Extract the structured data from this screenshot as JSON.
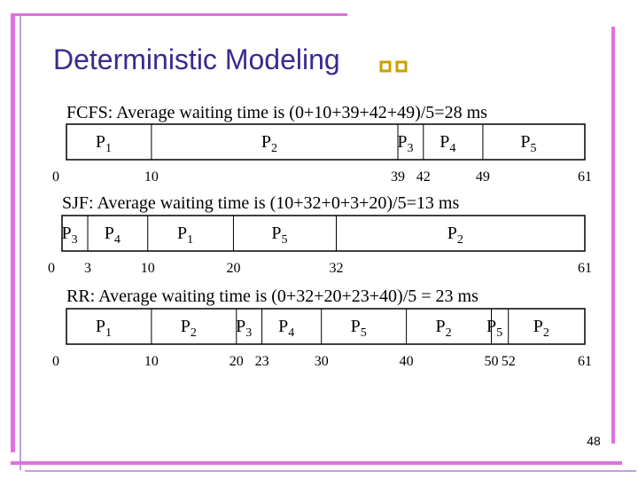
{
  "title": "Deterministic Modeling",
  "gantt": [
    {
      "heading": "FCFS: Average waiting time is (0+10+39+42+49)/5=28 ms",
      "segments": [
        {
          "letter": "P",
          "sub": "1"
        },
        {
          "letter": "P",
          "sub": "2"
        },
        {
          "letter": "P",
          "sub": "3"
        },
        {
          "letter": "P",
          "sub": "4"
        },
        {
          "letter": "P",
          "sub": "5"
        }
      ],
      "ticks": [
        0,
        10,
        39,
        42,
        49,
        61
      ]
    },
    {
      "heading": "SJF: Average waiting time is (10+32+0+3+20)/5=13 ms",
      "segments": [
        {
          "letter": "P",
          "sub": "3"
        },
        {
          "letter": "P",
          "sub": "4"
        },
        {
          "letter": "P",
          "sub": "1"
        },
        {
          "letter": "P",
          "sub": "5"
        },
        {
          "letter": "P",
          "sub": "2"
        }
      ],
      "ticks": [
        0,
        3,
        10,
        20,
        32,
        61
      ]
    },
    {
      "heading": "RR: Average waiting time is (0+32+20+23+40)/5 = 23 ms",
      "segments": [
        {
          "letter": "P",
          "sub": "1"
        },
        {
          "letter": "P",
          "sub": "2"
        },
        {
          "letter": "P",
          "sub": "3"
        },
        {
          "letter": "P",
          "sub": "4"
        },
        {
          "letter": "P",
          "sub": "5"
        },
        {
          "letter": "P",
          "sub": "2"
        },
        {
          "letter": "P",
          "sub": "5"
        },
        {
          "letter": "P",
          "sub": "2"
        }
      ],
      "ticks": [
        0,
        10,
        20,
        23,
        30,
        40,
        50,
        52,
        61
      ]
    }
  ],
  "page_number": "48"
}
